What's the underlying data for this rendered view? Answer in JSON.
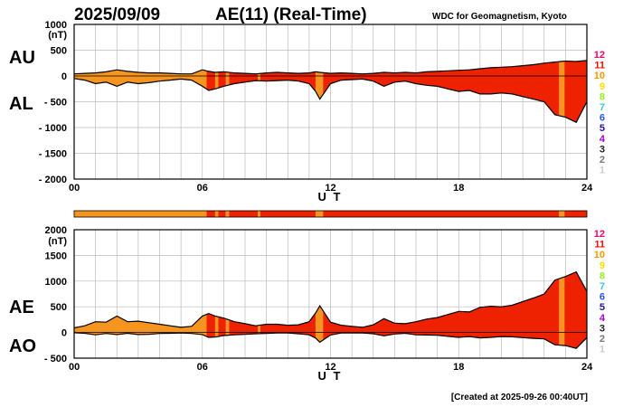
{
  "header": {
    "date": "2025/09/09",
    "title": "AE(11) (Real-Time)",
    "source": "WDC for Geomagnetism, Kyoto"
  },
  "footer": {
    "created": "[Created at 2025-09-26 00:40UT]"
  },
  "legend": {
    "labels": [
      "12",
      "11",
      "10",
      "9",
      "8",
      "7",
      "6",
      "5",
      "4",
      "3",
      "2",
      "1"
    ],
    "colors": [
      "#ff0066",
      "#ee1100",
      "#ff9900",
      "#ffe000",
      "#99ee22",
      "#33cccc",
      "#2255ff",
      "#2211aa",
      "#aa00cc",
      "#222222",
      "#777777",
      "#cccccc"
    ]
  },
  "station_colors": {
    "11": "#ee2200",
    "10": "#f5951f"
  },
  "chart_data": [
    {
      "type": "area",
      "panel": "AU/AL",
      "ylabel_unit": "(nT)",
      "side_labels": [
        "AU",
        "AL"
      ],
      "xlabel": "U T",
      "ylim": [
        -2000,
        1000
      ],
      "yticks": [
        1000,
        500,
        0,
        -500,
        -1000,
        -1500,
        -2000
      ],
      "ytick_labels": [
        "1000",
        "500",
        "0",
        "- 500",
        "- 1000",
        "- 1500",
        "- 2000"
      ],
      "xlim": [
        0,
        24
      ],
      "xticks": [
        0,
        6,
        12,
        18,
        24
      ],
      "xtick_labels": [
        "00",
        "06",
        "12",
        "18",
        "24"
      ],
      "grid": true,
      "series": [
        {
          "name": "AU",
          "x": [
            0,
            0.5,
            1,
            1.5,
            2,
            2.5,
            3,
            3.5,
            4,
            4.5,
            5,
            5.5,
            6,
            6.3,
            6.6,
            7,
            7.5,
            8,
            8.5,
            9,
            9.5,
            10,
            10.5,
            11,
            11.3,
            11.5,
            12,
            12.5,
            13,
            13.5,
            14,
            14.5,
            15,
            15.5,
            16,
            16.5,
            17,
            17.5,
            18,
            18.5,
            19,
            19.5,
            20,
            20.5,
            21,
            21.5,
            22,
            22.5,
            23,
            23.5,
            24
          ],
          "values": [
            40,
            50,
            60,
            80,
            120,
            90,
            70,
            60,
            60,
            50,
            40,
            40,
            120,
            90,
            70,
            80,
            60,
            50,
            40,
            60,
            70,
            60,
            50,
            60,
            80,
            70,
            50,
            60,
            50,
            40,
            50,
            70,
            60,
            70,
            60,
            80,
            90,
            100,
            110,
            120,
            140,
            160,
            170,
            180,
            200,
            220,
            250,
            270,
            290,
            280,
            300
          ]
        },
        {
          "name": "AL",
          "x": [
            0,
            0.5,
            1,
            1.5,
            2,
            2.5,
            3,
            3.5,
            4,
            4.5,
            5,
            5.5,
            6,
            6.3,
            6.6,
            7,
            7.5,
            8,
            8.5,
            9,
            9.5,
            10,
            10.5,
            11,
            11.3,
            11.5,
            12,
            12.5,
            13,
            13.5,
            14,
            14.5,
            15,
            15.5,
            16,
            16.5,
            17,
            17.5,
            18,
            18.5,
            19,
            19.5,
            20,
            20.5,
            21,
            21.5,
            22,
            22.5,
            23,
            23.5,
            24
          ],
          "values": [
            -50,
            -80,
            -150,
            -120,
            -200,
            -120,
            -150,
            -130,
            -100,
            -80,
            -60,
            -80,
            -200,
            -280,
            -250,
            -200,
            -150,
            -120,
            -90,
            -100,
            -90,
            -80,
            -100,
            -150,
            -300,
            -450,
            -150,
            -80,
            -70,
            -60,
            -100,
            -200,
            -120,
            -100,
            -150,
            -180,
            -200,
            -250,
            -300,
            -280,
            -350,
            -350,
            -330,
            -350,
            -400,
            -450,
            -500,
            -750,
            -800,
            -900,
            -500
          ]
        }
      ]
    },
    {
      "type": "area",
      "panel": "AE/AO",
      "ylabel_unit": "(nT)",
      "side_labels": [
        "AE",
        "AO"
      ],
      "xlabel": "U T",
      "ylim": [
        -500,
        2000
      ],
      "yticks": [
        2000,
        1500,
        1000,
        500,
        0,
        -500
      ],
      "ytick_labels": [
        "2000",
        "1500",
        "1000",
        "500",
        "0",
        "- 500"
      ],
      "xlim": [
        0,
        24
      ],
      "xticks": [
        0,
        6,
        12,
        18,
        24
      ],
      "xtick_labels": [
        "00",
        "06",
        "12",
        "18",
        "24"
      ],
      "grid": true,
      "series": [
        {
          "name": "AE",
          "x": [
            0,
            0.5,
            1,
            1.5,
            2,
            2.5,
            3,
            3.5,
            4,
            4.5,
            5,
            5.5,
            6,
            6.3,
            6.6,
            7,
            7.5,
            8,
            8.5,
            9,
            9.5,
            10,
            10.5,
            11,
            11.3,
            11.5,
            12,
            12.5,
            13,
            13.5,
            14,
            14.5,
            15,
            15.5,
            16,
            16.5,
            17,
            17.5,
            18,
            18.5,
            19,
            19.5,
            20,
            20.5,
            21,
            21.5,
            22,
            22.5,
            23,
            23.5,
            24
          ],
          "values": [
            90,
            130,
            210,
            200,
            320,
            210,
            220,
            190,
            160,
            130,
            100,
            120,
            320,
            370,
            320,
            280,
            210,
            170,
            130,
            160,
            160,
            140,
            150,
            210,
            380,
            520,
            200,
            140,
            120,
            100,
            150,
            270,
            180,
            170,
            210,
            260,
            290,
            350,
            410,
            400,
            490,
            510,
            500,
            530,
            600,
            670,
            750,
            1020,
            1090,
            1180,
            800
          ]
        },
        {
          "name": "AO",
          "x": [
            0,
            0.5,
            1,
            1.5,
            2,
            2.5,
            3,
            3.5,
            4,
            4.5,
            5,
            5.5,
            6,
            6.3,
            6.6,
            7,
            7.5,
            8,
            8.5,
            9,
            9.5,
            10,
            10.5,
            11,
            11.3,
            11.5,
            12,
            12.5,
            13,
            13.5,
            14,
            14.5,
            15,
            15.5,
            16,
            16.5,
            17,
            17.5,
            18,
            18.5,
            19,
            19.5,
            20,
            20.5,
            21,
            21.5,
            22,
            22.5,
            23,
            23.5,
            24
          ],
          "values": [
            -5,
            -15,
            -45,
            -20,
            -40,
            -15,
            -40,
            -35,
            -20,
            -15,
            -10,
            -20,
            -40,
            -95,
            -90,
            -60,
            -45,
            -35,
            -25,
            -20,
            -10,
            -10,
            -25,
            -45,
            -110,
            -190,
            -50,
            -10,
            -10,
            -10,
            -25,
            -65,
            -30,
            -15,
            -45,
            -50,
            -55,
            -75,
            -95,
            -80,
            -105,
            -95,
            -80,
            -85,
            -100,
            -115,
            -125,
            -240,
            -255,
            -310,
            -100
          ]
        }
      ]
    }
  ],
  "station_bar": {
    "segments": [
      {
        "start": 0,
        "end": 6.2,
        "station": "10"
      },
      {
        "start": 6.2,
        "end": 6.6,
        "station": "11"
      },
      {
        "start": 6.6,
        "end": 6.75,
        "station": "10"
      },
      {
        "start": 6.75,
        "end": 7.1,
        "station": "11"
      },
      {
        "start": 7.1,
        "end": 7.25,
        "station": "10"
      },
      {
        "start": 7.25,
        "end": 8.6,
        "station": "11"
      },
      {
        "start": 8.6,
        "end": 8.72,
        "station": "10"
      },
      {
        "start": 8.72,
        "end": 11.3,
        "station": "11"
      },
      {
        "start": 11.3,
        "end": 11.65,
        "station": "10"
      },
      {
        "start": 11.65,
        "end": 22.7,
        "station": "11"
      },
      {
        "start": 22.7,
        "end": 22.95,
        "station": "10"
      },
      {
        "start": 22.95,
        "end": 24,
        "station": "11"
      }
    ]
  }
}
